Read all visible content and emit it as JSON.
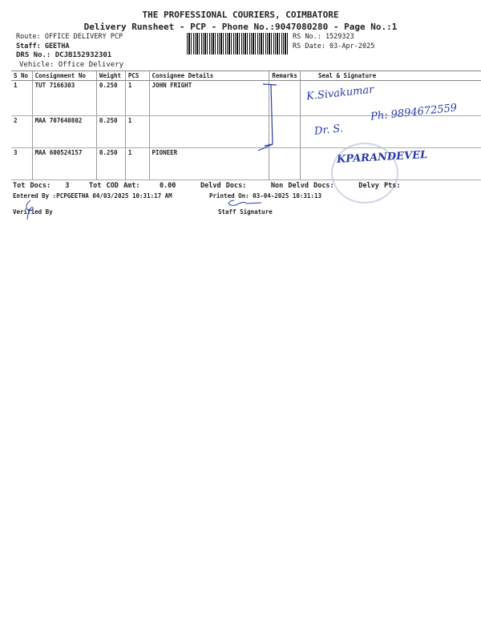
{
  "header": {
    "company": "THE PROFESSIONAL COURIERS, COIMBATORE",
    "subtitle": "Delivery Runsheet - PCP - Phone No.:9047080280 - Page No.:1",
    "route": "Route: OFFICE DELIVERY PCP",
    "staff": "Staff: GEETHA",
    "drs_no": "DRS No.: DCJB152932301",
    "vehicle": "Vehicle: Office Delivery",
    "rs_no": "RS No.: 1529323",
    "rs_date": "RS Date: 03-Apr-2025"
  },
  "table": {
    "columns": [
      "S No",
      "Consignment No",
      "Weight",
      "PCS",
      "Consignee Details",
      "Remarks",
      "Seal & Signature"
    ],
    "rows": [
      {
        "sno": "1",
        "consignment": "TUT 7166303",
        "weight": "0.250",
        "pcs": "1",
        "consignee": "JOHN FRIGHT",
        "remarks": ""
      },
      {
        "sno": "2",
        "consignment": "MAA 707640802",
        "weight": "0.250",
        "pcs": "1",
        "consignee": "",
        "remarks": ""
      },
      {
        "sno": "3",
        "consignment": "MAA 600524157",
        "weight": "0.250",
        "pcs": "1",
        "consignee": "PIONEER",
        "remarks": ""
      }
    ]
  },
  "totals": {
    "tot_docs_label": "Tot Docs:",
    "tot_docs": "3",
    "cod_label": "Tot COD Amt:",
    "cod": "0.00",
    "delvd": "Delvd Docs:",
    "non_delvd": "Non Delvd Docs:",
    "delvy_pts": "Delvy Pts:"
  },
  "footer": {
    "entered_by": "Entered By :PCPGEETHA 04/03/2025 10:31:17 AM",
    "printed_on": "Printed On: 03-04-2025 10:31:13",
    "verified_by": "Verified By",
    "staff_signature": "Staff Signature"
  },
  "handwriting": {
    "line1": "K.Sivakumar",
    "line2": "Dr. S.",
    "line3": "Ph: 9894672559",
    "stamp_sign": "KPARANDEVEL"
  }
}
